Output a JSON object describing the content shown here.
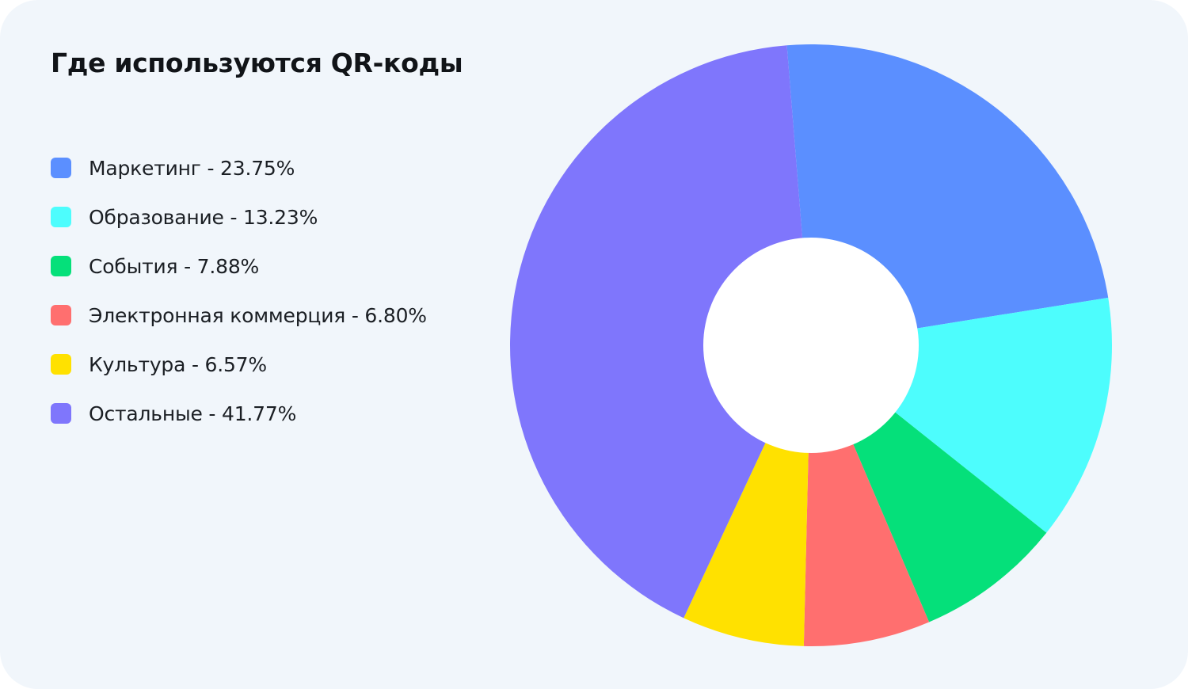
{
  "chart_data": {
    "type": "pie",
    "donut": true,
    "title": "Где используются QR-коды",
    "categories": [
      "Маркетинг",
      "Образование",
      "События",
      "Электронная коммерция",
      "Культура",
      "Остальные"
    ],
    "values": [
      23.75,
      13.23,
      7.88,
      6.8,
      6.57,
      41.77
    ],
    "legend_labels": [
      "Маркетинг - 23.75%",
      "Образование - 13.23%",
      "События - 7.88%",
      "Электронная коммерция - 6.80%",
      "Культура - 6.57%",
      "Остальные - 41.77%"
    ],
    "colors": [
      "#5b8fff",
      "#4dfdfd",
      "#05e07a",
      "#ff6f6f",
      "#ffe100",
      "#7f76fc"
    ],
    "legend_position": "left"
  },
  "theme": {
    "background": "#f1f6fb",
    "hole_color": "#ffffff"
  }
}
